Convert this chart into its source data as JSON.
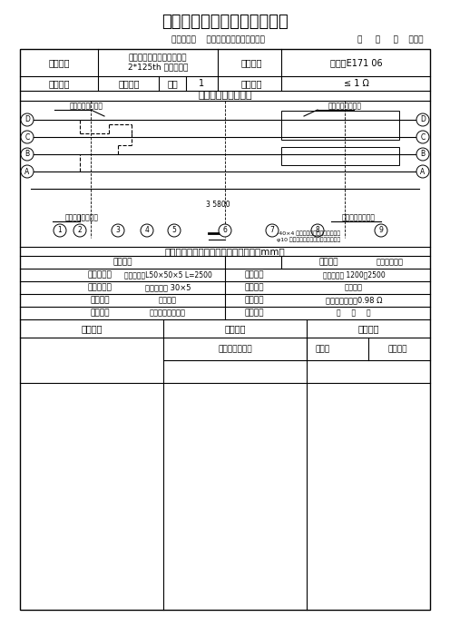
{
  "title": "主控楼电气接地隐蔽验收记录",
  "install_unit": "安装单位：    中国十五冶金建设有限公司",
  "year_label": "年     月     日    编号：",
  "project_name": "山西亚太焦化冶镁有限公司\n2*125th 干熄焦工程",
  "hidden_basis": "隐检依据",
  "drawing_no": "图纸：E171 06",
  "ground_type_label": "接地类别",
  "ground_type_val": "综合接地",
  "group_label": "组数",
  "group_val": "1",
  "design_req_label": "设计要求",
  "design_req_val": "≤ 1 Ω",
  "diagram_title": "接地装置平面示意图",
  "connect_top_left": "连接至室外接地网",
  "connect_top_right": "连接至室外接地网",
  "connect_bottom_left": "连接至室外接地网",
  "connect_bottom_right": "连接至室外接地网",
  "dimension_label": "3 5800",
  "legend1": "-40×4 热镀锌扁钢，与建筑土钢焊接",
  "legend2": "φ10 热镀锌圆钢，与各层电缆桥架焊接",
  "row_labels": [
    "D",
    "C",
    "B",
    "A"
  ],
  "col_labels": [
    "1",
    "2",
    "3",
    "4",
    "5",
    "6",
    "7",
    "8",
    "9"
  ],
  "check_table_title": "接地装置敷设情况检查表（尺寸单位：mm）",
  "trench_size_label": "槽沟尺寸",
  "trench_size_val": "",
  "soil_label": "土壤情况",
  "soil_val": "普通回填土壤",
  "ground_material_label": "接地极规格",
  "ground_material_val": "热镀锌角钢L50×50×5 L=2500",
  "backfill_depth_label": "打进深度",
  "backfill_depth_val": "（设计内深 1200）2500",
  "ground_wire_label": "接地体规格",
  "ground_wire_val": "热镀锌扁钢 30×5",
  "weld_label": "焊接情况",
  "weld_val": "三面搭焊",
  "anticorr_label": "防腐处理",
  "anticorr_val": "沥青防腐",
  "resistance_label": "接地电阻",
  "resistance_val": "（取最大阻值）0.98",
  "resistance_unit": "Ω",
  "check_result_label": "检验结论",
  "check_result_val": "符合电气接地规范",
  "check_date_label": "检查日期",
  "check_date_val": "年     月     日",
  "general_contractor": "总包单位",
  "supervisor": "监理单位",
  "construction_unit": "施工单位",
  "tech_person": "专业技术负责人",
  "quality_inspector": "质检员",
  "chief_engineer": "专业工长"
}
